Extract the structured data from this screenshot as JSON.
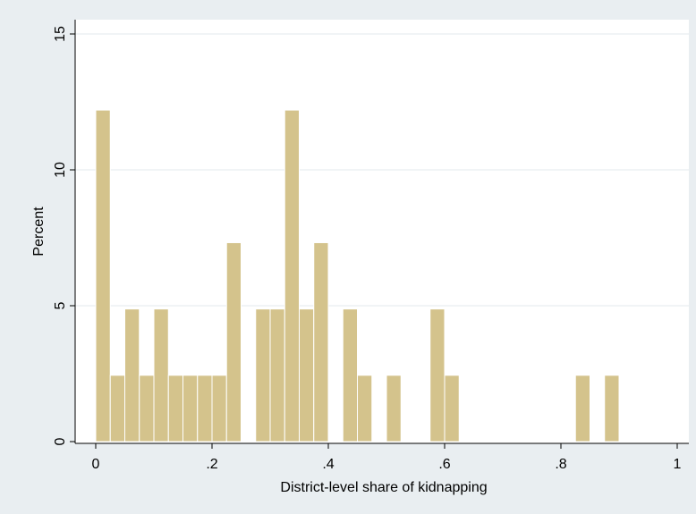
{
  "chart_data": {
    "type": "bar",
    "title": "",
    "xlabel": "District-level share of kidnapping",
    "ylabel": "Percent",
    "xlim": [
      0,
      1
    ],
    "ylim": [
      0,
      15
    ],
    "xticks": [
      {
        "value": 0,
        "label": "0"
      },
      {
        "value": 0.2,
        "label": ".2"
      },
      {
        "value": 0.4,
        "label": ".4"
      },
      {
        "value": 0.6,
        "label": ".6"
      },
      {
        "value": 0.8,
        "label": ".8"
      },
      {
        "value": 1,
        "label": "1"
      }
    ],
    "yticks": [
      {
        "value": 0,
        "label": "0"
      },
      {
        "value": 5,
        "label": "5"
      },
      {
        "value": 10,
        "label": "10"
      },
      {
        "value": 15,
        "label": "15"
      }
    ],
    "grid": true,
    "bar_color": "#d4c38c",
    "bar_edge_color": "#ffffff",
    "bin_width": 0.025,
    "bins": [
      {
        "start": 0.0,
        "value": 12.2
      },
      {
        "start": 0.025,
        "value": 2.44
      },
      {
        "start": 0.05,
        "value": 4.88
      },
      {
        "start": 0.075,
        "value": 2.44
      },
      {
        "start": 0.1,
        "value": 4.88
      },
      {
        "start": 0.125,
        "value": 2.44
      },
      {
        "start": 0.15,
        "value": 2.44
      },
      {
        "start": 0.175,
        "value": 2.44
      },
      {
        "start": 0.2,
        "value": 2.44
      },
      {
        "start": 0.225,
        "value": 7.32
      },
      {
        "start": 0.275,
        "value": 4.88
      },
      {
        "start": 0.3,
        "value": 4.88
      },
      {
        "start": 0.325,
        "value": 12.2
      },
      {
        "start": 0.35,
        "value": 4.88
      },
      {
        "start": 0.375,
        "value": 7.32
      },
      {
        "start": 0.425,
        "value": 4.88
      },
      {
        "start": 0.45,
        "value": 2.44
      },
      {
        "start": 0.5,
        "value": 2.44
      },
      {
        "start": 0.575,
        "value": 4.88
      },
      {
        "start": 0.6,
        "value": 2.44
      },
      {
        "start": 0.825,
        "value": 2.44
      },
      {
        "start": 0.875,
        "value": 2.44
      }
    ]
  }
}
